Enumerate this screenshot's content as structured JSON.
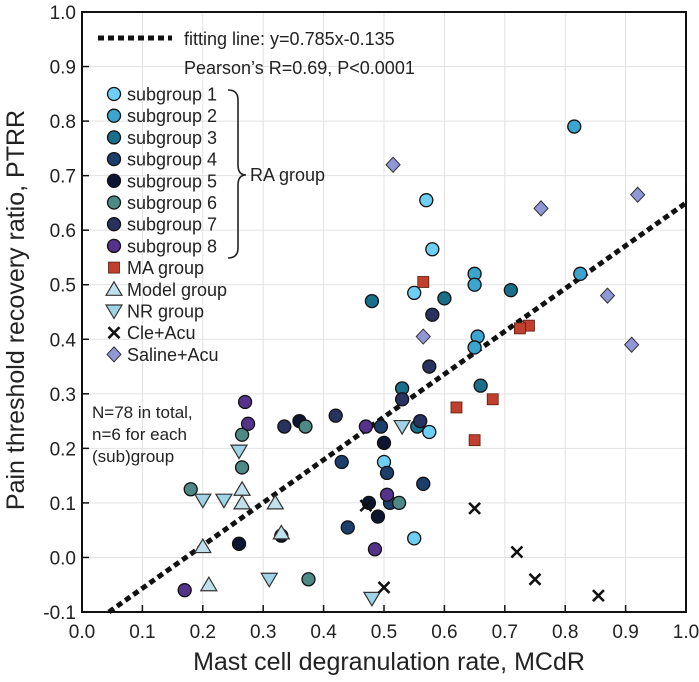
{
  "chart_data": {
    "type": "scatter",
    "xlabel": "Mast cell degranulation rate, MCdR",
    "ylabel": "Pain threshold recovery ratio, PTRR",
    "xlim": [
      0.0,
      1.0
    ],
    "ylim": [
      -0.1,
      1.0
    ],
    "x_ticks": [
      "0.0",
      "0.1",
      "0.2",
      "0.3",
      "0.4",
      "0.5",
      "0.6",
      "0.7",
      "0.8",
      "0.9",
      "1.0"
    ],
    "y_ticks": [
      "-0.1",
      "0.0",
      "0.1",
      "0.2",
      "0.3",
      "0.4",
      "0.5",
      "0.6",
      "0.7",
      "0.8",
      "0.9",
      "1.0"
    ],
    "grid": true,
    "fit": {
      "label": "fitting line: y=0.785x-0.135",
      "slope": 0.785,
      "intercept": -0.135,
      "stats": "Pearson’s R=0.69, P<0.0001"
    },
    "ra_group_label": "RA group",
    "notes": [
      "N=78 in total,",
      "n=6 for each",
      "(sub)group"
    ],
    "series": [
      {
        "name": "subgroup 1",
        "marker": "circle",
        "color": "#6ccff3",
        "points": [
          [
            0.57,
            0.655
          ],
          [
            0.58,
            0.565
          ],
          [
            0.55,
            0.485
          ],
          [
            0.575,
            0.23
          ],
          [
            0.5,
            0.175
          ],
          [
            0.55,
            0.035
          ]
        ]
      },
      {
        "name": "subgroup 2",
        "marker": "circle",
        "color": "#3aa6cf",
        "points": [
          [
            0.815,
            0.79
          ],
          [
            0.825,
            0.52
          ],
          [
            0.65,
            0.52
          ],
          [
            0.65,
            0.5
          ],
          [
            0.655,
            0.405
          ],
          [
            0.65,
            0.385
          ]
        ]
      },
      {
        "name": "subgroup 3",
        "marker": "circle",
        "color": "#1a6f8a",
        "points": [
          [
            0.48,
            0.47
          ],
          [
            0.6,
            0.475
          ],
          [
            0.71,
            0.49
          ],
          [
            0.53,
            0.31
          ],
          [
            0.66,
            0.315
          ],
          [
            0.555,
            0.24
          ]
        ]
      },
      {
        "name": "subgroup 4",
        "marker": "circle",
        "color": "#1c3e6b",
        "points": [
          [
            0.43,
            0.175
          ],
          [
            0.495,
            0.24
          ],
          [
            0.505,
            0.155
          ],
          [
            0.51,
            0.1
          ],
          [
            0.44,
            0.055
          ],
          [
            0.565,
            0.135
          ]
        ]
      },
      {
        "name": "subgroup 5",
        "marker": "circle",
        "color": "#0d1630",
        "points": [
          [
            0.36,
            0.25
          ],
          [
            0.5,
            0.21
          ],
          [
            0.475,
            0.1
          ],
          [
            0.49,
            0.075
          ],
          [
            0.33,
            0.04
          ],
          [
            0.26,
            0.025
          ]
        ]
      },
      {
        "name": "subgroup 6",
        "marker": "circle",
        "color": "#4e8a85",
        "points": [
          [
            0.37,
            0.24
          ],
          [
            0.265,
            0.165
          ],
          [
            0.18,
            0.125
          ],
          [
            0.525,
            0.1
          ],
          [
            0.375,
            -0.04
          ],
          [
            0.265,
            0.225
          ]
        ]
      },
      {
        "name": "subgroup 7",
        "marker": "circle",
        "color": "#27335e",
        "points": [
          [
            0.58,
            0.445
          ],
          [
            0.575,
            0.35
          ],
          [
            0.53,
            0.29
          ],
          [
            0.42,
            0.26
          ],
          [
            0.56,
            0.25
          ],
          [
            0.335,
            0.24
          ]
        ]
      },
      {
        "name": "subgroup 8",
        "marker": "circle",
        "color": "#55338a",
        "points": [
          [
            0.27,
            0.285
          ],
          [
            0.47,
            0.24
          ],
          [
            0.275,
            0.245
          ],
          [
            0.505,
            0.115
          ],
          [
            0.485,
            0.015
          ],
          [
            0.17,
            -0.06
          ]
        ]
      },
      {
        "name": "MA group",
        "marker": "square",
        "color": "#c0402d",
        "points": [
          [
            0.565,
            0.505
          ],
          [
            0.74,
            0.425
          ],
          [
            0.725,
            0.42
          ],
          [
            0.62,
            0.275
          ],
          [
            0.68,
            0.29
          ],
          [
            0.65,
            0.215
          ]
        ]
      },
      {
        "name": "Model group",
        "marker": "triangle-up",
        "color": "#bfe0ec",
        "points": [
          [
            0.265,
            0.125
          ],
          [
            0.265,
            0.1
          ],
          [
            0.32,
            0.1
          ],
          [
            0.33,
            0.045
          ],
          [
            0.2,
            0.02
          ],
          [
            0.21,
            -0.05
          ]
        ]
      },
      {
        "name": "NR group",
        "marker": "triangle-down",
        "color": "#9fd3e6",
        "points": [
          [
            0.26,
            0.195
          ],
          [
            0.2,
            0.105
          ],
          [
            0.235,
            0.105
          ],
          [
            0.53,
            0.24
          ],
          [
            0.31,
            -0.04
          ],
          [
            0.48,
            -0.075
          ]
        ]
      },
      {
        "name": "Cle+Acu",
        "marker": "x",
        "color": "#111111",
        "points": [
          [
            0.47,
            0.095
          ],
          [
            0.65,
            0.09
          ],
          [
            0.72,
            0.01
          ],
          [
            0.75,
            -0.04
          ],
          [
            0.5,
            -0.055
          ],
          [
            0.855,
            -0.07
          ]
        ]
      },
      {
        "name": "Saline+Acu",
        "marker": "diamond",
        "color": "#8f97d6",
        "points": [
          [
            0.515,
            0.72
          ],
          [
            0.92,
            0.665
          ],
          [
            0.76,
            0.64
          ],
          [
            0.87,
            0.48
          ],
          [
            0.91,
            0.39
          ],
          [
            0.565,
            0.405
          ]
        ]
      }
    ]
  }
}
